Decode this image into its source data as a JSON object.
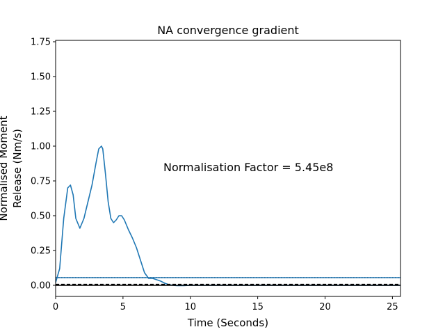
{
  "chart_data": {
    "type": "line",
    "title": "NA convergence gradient",
    "xlabel": "Time (Seconds)",
    "ylabel_lines": [
      "Normalised Moment",
      "Release (Nm/s)"
    ],
    "xlim": [
      0,
      25.6
    ],
    "ylim": [
      -0.08,
      1.76
    ],
    "x_ticks": [
      0,
      5,
      10,
      15,
      20,
      25
    ],
    "x_tick_labels": [
      "0",
      "5",
      "10",
      "15",
      "20",
      "25"
    ],
    "y_ticks": [
      0.0,
      0.25,
      0.5,
      0.75,
      1.0,
      1.25,
      1.5,
      1.75
    ],
    "y_tick_labels": [
      "0.00",
      "0.25",
      "0.50",
      "0.75",
      "1.00",
      "1.25",
      "1.50",
      "1.75"
    ],
    "grid": false,
    "annotation": {
      "text": "Normalisation Factor = 5.45e8",
      "x": 8.0,
      "y": 0.82
    },
    "series": [
      {
        "color": "#1f77b4",
        "style": "solid",
        "x": [
          0.0,
          0.3,
          0.6,
          0.9,
          1.1,
          1.3,
          1.5,
          1.8,
          2.1,
          2.4,
          2.7,
          3.0,
          3.2,
          3.4,
          3.5,
          3.7,
          3.9,
          4.1,
          4.3,
          4.5,
          4.7,
          4.9,
          5.1,
          5.4,
          5.7,
          6.0,
          6.3,
          6.6,
          6.9,
          7.2,
          7.5,
          7.8,
          8.1,
          8.4,
          8.7,
          9.0,
          9.5,
          10.0,
          12.0,
          15.0,
          20.0,
          25.6
        ],
        "y": [
          0.02,
          0.12,
          0.48,
          0.7,
          0.72,
          0.65,
          0.48,
          0.41,
          0.48,
          0.6,
          0.72,
          0.88,
          0.98,
          1.0,
          0.98,
          0.8,
          0.6,
          0.48,
          0.45,
          0.47,
          0.5,
          0.5,
          0.47,
          0.4,
          0.34,
          0.27,
          0.18,
          0.09,
          0.05,
          0.05,
          0.04,
          0.03,
          0.015,
          0.005,
          0.0,
          -0.002,
          -0.002,
          0.0,
          0.0,
          0.0,
          0.0,
          0.0
        ]
      },
      {
        "color": "#000000",
        "style": "dotted",
        "x": [
          0,
          25.6
        ],
        "y": [
          0.055,
          0.055
        ]
      },
      {
        "color": "#1f77b4",
        "style": "solid",
        "x": [
          0,
          25.6
        ],
        "y": [
          0.055,
          0.055
        ]
      },
      {
        "color": "#000000",
        "style": "dashed",
        "x": [
          0,
          25.6
        ],
        "y": [
          0.005,
          0.005
        ]
      },
      {
        "color": "#000000",
        "style": "solid",
        "x": [
          0,
          25.6
        ],
        "y": [
          0.0,
          0.0
        ]
      }
    ]
  }
}
